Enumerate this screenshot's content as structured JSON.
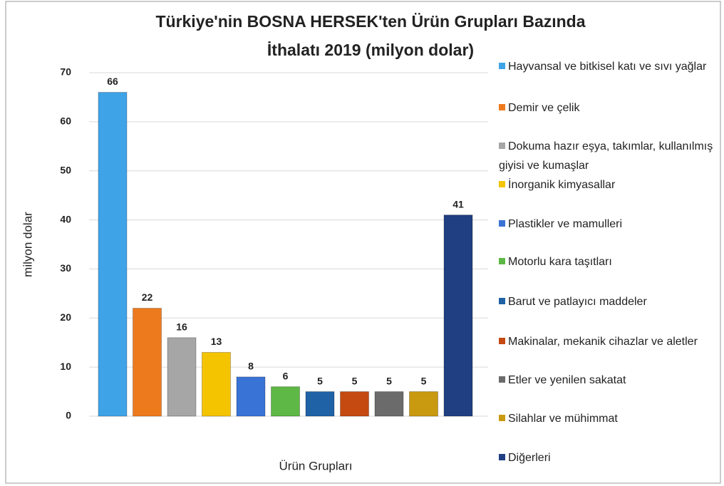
{
  "chart_data": {
    "type": "bar",
    "title": [
      "Türkiye'nin BOSNA HERSEK'ten  Ürün Grupları Bazında",
      "İthalatı 2019 (milyon dolar)"
    ],
    "ylabel": "milyon dolar",
    "xlabel": "Ürün Grupları",
    "categories": [
      "Hayvansal ve bitkisel katı ve sıvı yağlar",
      "Demir ve çelik",
      "Dokuma hazır eşya, takımlar, kullanılmış giyisi ve kumaşlar",
      "İnorganik kimyasallar",
      "Plastikler ve mamulleri",
      "Motorlu kara taşıtları",
      "Barut ve patlayıcı maddeler",
      "Makinalar, mekanik cihazlar ve aletler",
      "Etler ve yenilen sakatat",
      "Silahlar ve mühimmat",
      "Diğerleri"
    ],
    "values": [
      66,
      22,
      16,
      13,
      8,
      6,
      5,
      5,
      5,
      5,
      41
    ],
    "colors": [
      "#3fa3e8",
      "#ee7a1e",
      "#a6a6a6",
      "#f5c400",
      "#3a73d6",
      "#5db845",
      "#1f62a6",
      "#c44a12",
      "#6b6b6b",
      "#c99a10",
      "#1f3f82"
    ],
    "ylim": [
      0,
      70
    ],
    "yticks": [
      0,
      10,
      20,
      30,
      40,
      50,
      60,
      70
    ],
    "grid": true,
    "legend": "right"
  }
}
